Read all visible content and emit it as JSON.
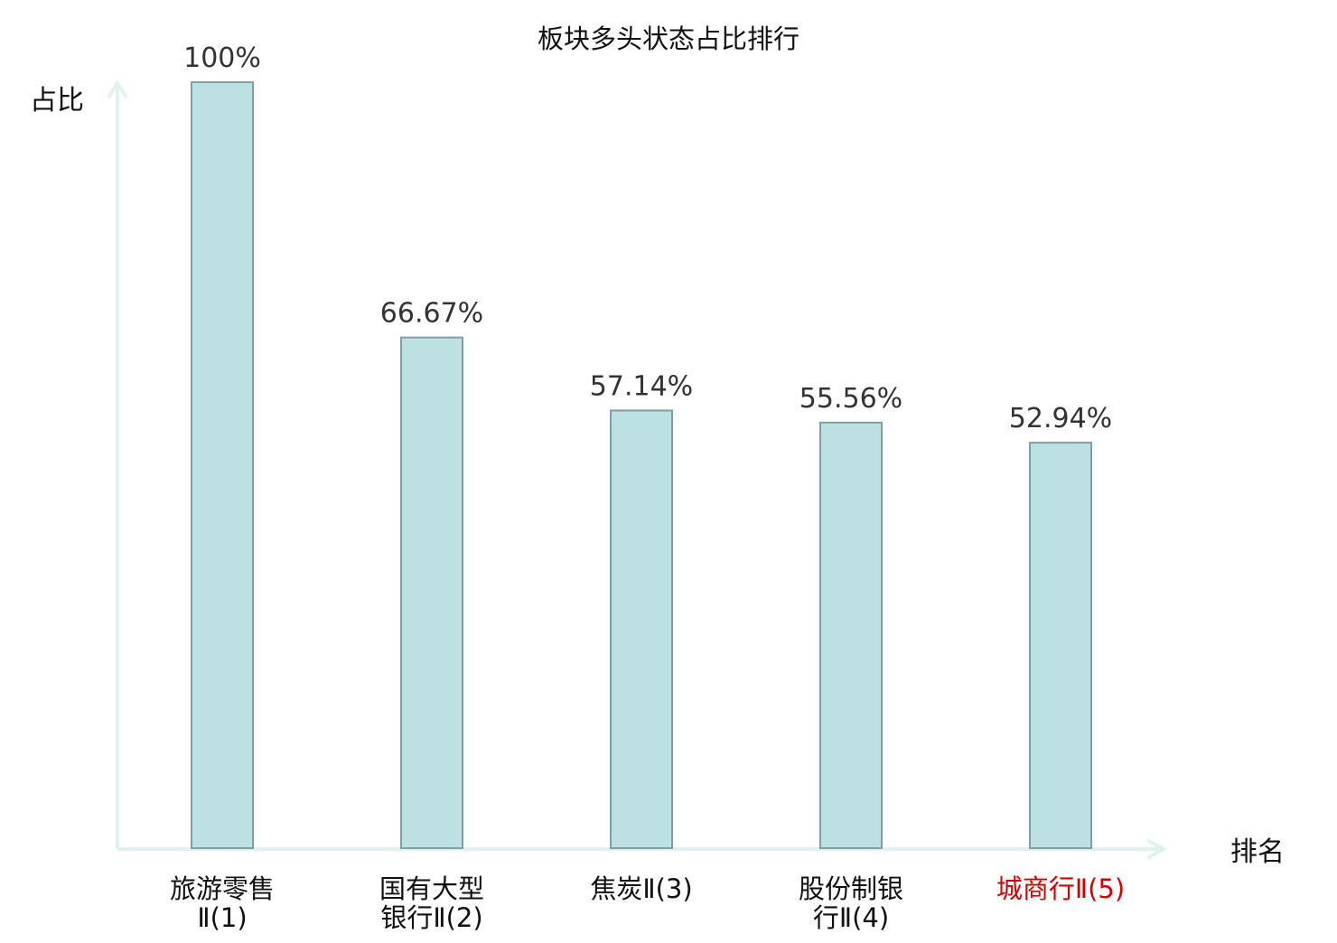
{
  "chart_data": {
    "type": "bar",
    "title": "板块多头状态占比排行",
    "xlabel": "排名",
    "ylabel": "占比",
    "ylim": [
      0,
      100
    ],
    "grid": false,
    "legend": "none",
    "categories": [
      {
        "lines": [
          "旅游零售",
          "Ⅱ(1)"
        ],
        "highlight": false
      },
      {
        "lines": [
          "国有大型",
          "银行Ⅱ(2)"
        ],
        "highlight": false
      },
      {
        "lines": [
          "焦炭Ⅱ(3)"
        ],
        "highlight": false
      },
      {
        "lines": [
          "股份制银",
          "行Ⅱ(4)"
        ],
        "highlight": false
      },
      {
        "lines": [
          "城商行Ⅱ(5)"
        ],
        "highlight": true
      }
    ],
    "values": [
      100,
      66.67,
      57.14,
      55.56,
      52.94
    ],
    "value_labels": [
      "100%",
      "66.67%",
      "57.14%",
      "55.56%",
      "52.94%"
    ]
  },
  "colors": {
    "bar_fill": "#bde0e2",
    "bar_stroke": "#7f9fa1",
    "axis": "#dff2ef",
    "text": "#333333",
    "label": "#111111",
    "highlight": "#d10000"
  }
}
